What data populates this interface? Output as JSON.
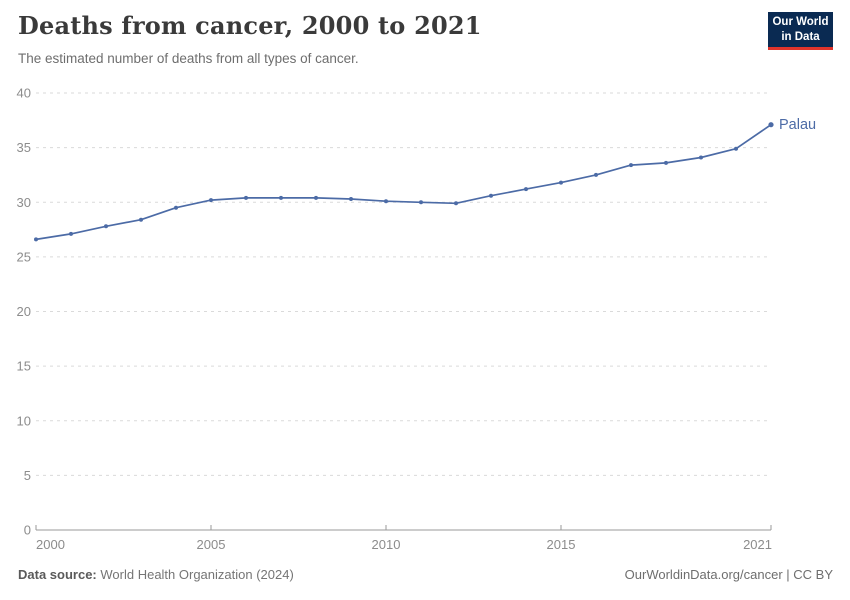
{
  "header": {
    "title": "Deaths from cancer, 2000 to 2021",
    "subtitle": "The estimated number of deaths from all types of cancer.",
    "logo": {
      "line1": "Our World",
      "line2": "in Data",
      "bg_color": "#0a2a52",
      "accent_color": "#e0342b"
    }
  },
  "chart_data": {
    "type": "line",
    "title": "Deaths from cancer, 2000 to 2021",
    "subtitle": "The estimated number of deaths from all types of cancer.",
    "x": [
      2000,
      2001,
      2002,
      2003,
      2004,
      2005,
      2006,
      2007,
      2008,
      2009,
      2010,
      2011,
      2012,
      2013,
      2014,
      2015,
      2016,
      2017,
      2018,
      2019,
      2020,
      2021
    ],
    "series": [
      {
        "name": "Palau",
        "color": "#4c6ba6",
        "values": [
          26.6,
          27.1,
          27.8,
          28.4,
          29.5,
          30.2,
          30.4,
          30.4,
          30.4,
          30.3,
          30.1,
          30.0,
          29.9,
          30.6,
          31.2,
          31.8,
          32.5,
          33.4,
          33.6,
          34.1,
          34.9,
          37.1
        ]
      }
    ],
    "xlabel": "",
    "ylabel": "",
    "xlim": [
      2000,
      2021
    ],
    "ylim": [
      0,
      40
    ],
    "x_ticks": [
      2000,
      2005,
      2010,
      2015,
      2021
    ],
    "y_ticks": [
      0,
      5,
      10,
      15,
      20,
      25,
      30,
      35,
      40
    ],
    "grid": "horizontal-dashed",
    "legend": "end-of-line-label",
    "axis_color": "#9a9a9a",
    "gridline_color": "#dadada",
    "tick_label_color": "#8c8c8c"
  },
  "footer": {
    "source_label": "Data source:",
    "source_value": "World Health Organization (2024)",
    "credit": "OurWorldinData.org/cancer | CC BY"
  }
}
